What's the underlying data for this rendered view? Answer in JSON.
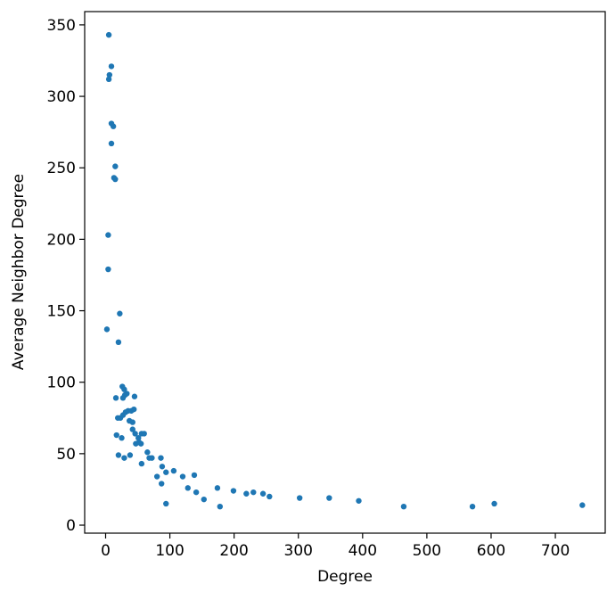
{
  "chart_data": {
    "type": "scatter",
    "x_label": "Degree",
    "y_label": "Average Neighbor Degree",
    "x": [
      5,
      9,
      6,
      5,
      9,
      12,
      9,
      15,
      13,
      15,
      4,
      4,
      2,
      22,
      20,
      26,
      29,
      30,
      33,
      27,
      45,
      16,
      19,
      23,
      27,
      31,
      35,
      40,
      44,
      37,
      42,
      42,
      17,
      25,
      46,
      51,
      56,
      60,
      52,
      47,
      55,
      20,
      29,
      38,
      65,
      72,
      68,
      56,
      86,
      88,
      94,
      106,
      80,
      87,
      120,
      138,
      128,
      141,
      94,
      153,
      174,
      178,
      199,
      219,
      230,
      245,
      255,
      302,
      348,
      394,
      464,
      571,
      605,
      742
    ],
    "values": [
      343,
      321,
      315,
      312,
      281,
      279,
      267,
      251,
      243,
      242,
      203,
      179,
      137,
      148,
      128,
      97,
      95,
      91,
      92,
      89,
      90,
      89,
      75,
      75,
      77,
      79,
      80,
      80,
      81,
      73,
      72,
      67,
      63,
      61,
      64,
      61,
      64,
      64,
      58,
      57,
      57,
      49,
      47,
      49,
      51,
      47,
      47,
      43,
      47,
      41,
      37,
      38,
      34,
      29,
      34,
      35,
      26,
      23,
      15,
      18,
      26,
      13,
      24,
      22,
      23,
      22,
      20,
      19,
      19,
      17,
      13,
      13,
      15,
      14
    ],
    "color": "#1f77b4",
    "xlim": [
      -32.6,
      779
    ],
    "ylim": [
      -5.6,
      359.3
    ],
    "xticks": [
      0,
      100,
      200,
      300,
      400,
      500,
      600,
      700
    ],
    "yticks": [
      0,
      50,
      100,
      150,
      200,
      250,
      300,
      350
    ]
  }
}
